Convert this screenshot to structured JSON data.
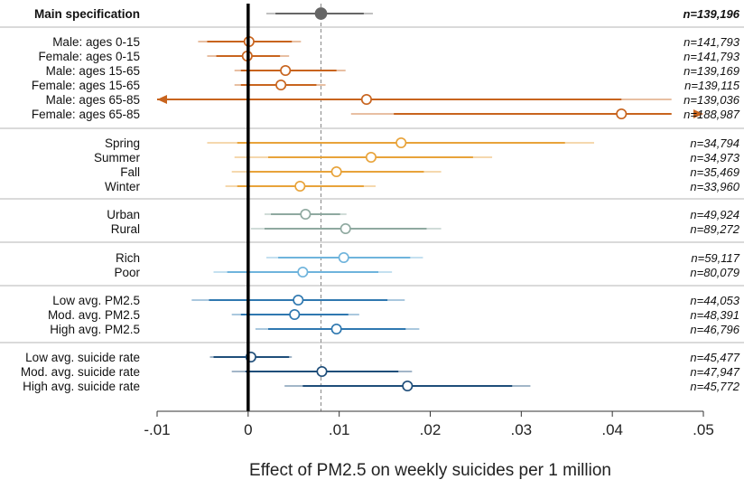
{
  "chart_data": {
    "type": "forest",
    "xlabel": "Effect of PM2.5 on weekly suicides per 1 million",
    "xlim": [
      -0.01,
      0.05
    ],
    "xticks": [
      -0.01,
      0,
      0.01,
      0.02,
      0.03,
      0.04,
      0.05
    ],
    "xtick_labels": [
      "-.01",
      "0",
      ".01",
      ".02",
      ".03",
      ".04",
      ".05"
    ],
    "reference_line": {
      "x": 0,
      "style": "solid-bold"
    },
    "main_estimate_line": {
      "x": 0.008,
      "style": "dashed"
    },
    "colors": {
      "main": "#666666",
      "sex_age": "#c8641e",
      "season": "#e8a33a",
      "urbanicity": "#8fa9a0",
      "income": "#6fb4dc",
      "pm25": "#2f78b0",
      "suicide_rate": "#1f4e7a",
      "zero_line": "#000000",
      "dashed_line": "#888888"
    },
    "groups": [
      {
        "key": "main",
        "color_key": "main",
        "rows": [
          {
            "label": "Main specification",
            "bold": true,
            "filled": true,
            "est": 0.008,
            "ci_inner": [
              0.003,
              0.0127
            ],
            "ci_outer": [
              0.002,
              0.0137
            ],
            "n": "n=139,196"
          }
        ]
      },
      {
        "key": "sex_age",
        "color_key": "sex_age",
        "rows": [
          {
            "label": "Male: ages 0-15",
            "est": 0.0001,
            "ci_inner": [
              -0.0045,
              0.0048
            ],
            "ci_outer": [
              -0.0055,
              0.0058
            ],
            "n": "n=141,793"
          },
          {
            "label": "Female: ages 0-15",
            "est": -0.0001,
            "ci_inner": [
              -0.0035,
              0.0035
            ],
            "ci_outer": [
              -0.0045,
              0.0045
            ],
            "n": "n=141,793"
          },
          {
            "label": "Male: ages 15-65",
            "est": 0.0041,
            "ci_inner": [
              -0.0008,
              0.0097
            ],
            "ci_outer": [
              -0.0015,
              0.0107
            ],
            "n": "n=139,169"
          },
          {
            "label": "Female: ages 15-65",
            "est": 0.0036,
            "ci_inner": [
              -0.0008,
              0.0075
            ],
            "ci_outer": [
              -0.0015,
              0.0085
            ],
            "n": "n=139,115"
          },
          {
            "label": "Male: ages 65-85",
            "est": 0.013,
            "ci_inner": [
              -0.01,
              0.041
            ],
            "ci_outer": [
              -0.01,
              0.0465
            ],
            "lower_arrow": true,
            "n": "n=139,036"
          },
          {
            "label": "Female: ages 65-85",
            "est": 0.041,
            "ci_inner": [
              0.016,
              0.0465
            ],
            "ci_outer": [
              0.0113,
              0.0465
            ],
            "upper_arrow": true,
            "n": "n=188,987"
          }
        ]
      },
      {
        "key": "season",
        "color_key": "season",
        "rows": [
          {
            "label": "Spring",
            "est": 0.0168,
            "ci_inner": [
              -0.0012,
              0.0348
            ],
            "ci_outer": [
              -0.0045,
              0.038
            ],
            "n": "n=34,794"
          },
          {
            "label": "Summer",
            "est": 0.0135,
            "ci_inner": [
              0.0022,
              0.0247
            ],
            "ci_outer": [
              -0.0015,
              0.0268
            ],
            "n": "n=34,973"
          },
          {
            "label": "Fall",
            "est": 0.0097,
            "ci_inner": [
              0.0002,
              0.0193
            ],
            "ci_outer": [
              -0.0018,
              0.0212
            ],
            "n": "n=35,469"
          },
          {
            "label": "Winter",
            "est": 0.0057,
            "ci_inner": [
              -0.0012,
              0.0127
            ],
            "ci_outer": [
              -0.0025,
              0.014
            ],
            "n": "n=33,960"
          }
        ]
      },
      {
        "key": "urbanicity",
        "color_key": "urbanicity",
        "rows": [
          {
            "label": "Urban",
            "est": 0.0063,
            "ci_inner": [
              0.0025,
              0.0101
            ],
            "ci_outer": [
              0.0018,
              0.0108
            ],
            "n": "n=49,924"
          },
          {
            "label": "Rural",
            "est": 0.0107,
            "ci_inner": [
              0.0018,
              0.0196
            ],
            "ci_outer": [
              0.0003,
              0.0212
            ],
            "n": "n=89,272"
          }
        ]
      },
      {
        "key": "income",
        "color_key": "income",
        "rows": [
          {
            "label": "Rich",
            "est": 0.0105,
            "ci_inner": [
              0.0033,
              0.0178
            ],
            "ci_outer": [
              0.002,
              0.0192
            ],
            "n": "n=59,117"
          },
          {
            "label": "Poor",
            "est": 0.006,
            "ci_inner": [
              -0.0023,
              0.0143
            ],
            "ci_outer": [
              -0.0038,
              0.0158
            ],
            "n": "n=80,079"
          }
        ]
      },
      {
        "key": "pm25",
        "color_key": "pm25",
        "rows": [
          {
            "label": "Low avg. PM2.5",
            "est": 0.0055,
            "ci_inner": [
              -0.0043,
              0.0153
            ],
            "ci_outer": [
              -0.0062,
              0.0172
            ],
            "n": "n=44,053"
          },
          {
            "label": "Mod. avg. PM2.5",
            "est": 0.0051,
            "ci_inner": [
              -0.0008,
              0.011
            ],
            "ci_outer": [
              -0.0018,
              0.0122
            ],
            "n": "n=48,391"
          },
          {
            "label": "High avg. PM2.5",
            "est": 0.0097,
            "ci_inner": [
              0.0022,
              0.0173
            ],
            "ci_outer": [
              0.0008,
              0.0188
            ],
            "n": "n=46,796"
          }
        ]
      },
      {
        "key": "suicide_rate",
        "color_key": "suicide_rate",
        "rows": [
          {
            "label": "Low avg. suicide rate",
            "est": 0.0003,
            "ci_inner": [
              -0.0038,
              0.0045
            ],
            "ci_outer": [
              -0.0042,
              0.0048
            ],
            "n": "n=45,477"
          },
          {
            "label": "Mod. avg. suicide rate",
            "est": 0.0081,
            "ci_inner": [
              -0.0003,
              0.0165
            ],
            "ci_outer": [
              -0.0018,
              0.018
            ],
            "n": "n=47,947"
          },
          {
            "label": "High avg. suicide rate",
            "est": 0.0175,
            "ci_inner": [
              0.006,
              0.029
            ],
            "ci_outer": [
              0.004,
              0.031
            ],
            "n": "n=45,772"
          }
        ]
      }
    ]
  }
}
